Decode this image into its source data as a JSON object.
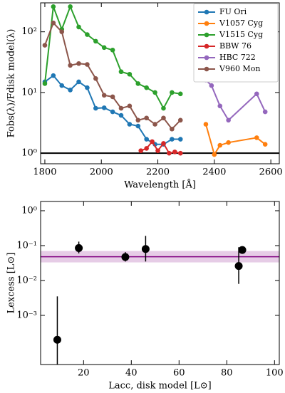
{
  "chart_data": [
    {
      "type": "line",
      "log_y": true,
      "xlabel": "Wavelength [Å]",
      "ylabel": "Fobs(λ)/Fdisk model(λ)",
      "xlim": [
        1785,
        2630
      ],
      "xticks": [
        1800,
        2000,
        2200,
        2400,
        2600
      ],
      "ylim": [
        0.67,
        300
      ],
      "yticks": [
        {
          "value": 1,
          "label": "10⁰"
        },
        {
          "value": 10,
          "label": "10¹"
        },
        {
          "value": 100,
          "label": "10²"
        }
      ],
      "hline": 1,
      "legend": "upper right",
      "series": [
        {
          "name": "FU Ori",
          "color": "#1f77b4",
          "x": [
            1800,
            1830,
            1860,
            1890,
            1920,
            1950,
            1980,
            2010,
            2040,
            2070,
            2100,
            2130,
            2160,
            2190,
            2220,
            2250,
            2280
          ],
          "values": [
            15,
            19,
            13,
            11,
            15,
            12,
            5.5,
            5.6,
            4.8,
            4.2,
            3,
            2.8,
            1.7,
            1.4,
            1.4,
            1.7,
            1.7
          ]
        },
        {
          "name": "V1057 Cyg",
          "color": "#ff7f0e",
          "x": [
            2370,
            2400,
            2420,
            2450,
            2550,
            2580
          ],
          "values": [
            3,
            0.95,
            1.35,
            1.5,
            1.8,
            1.4
          ]
        },
        {
          "name": "V1515 Cyg",
          "color": "#2ca02c",
          "x": [
            1800,
            1830,
            1860,
            1890,
            1920,
            1950,
            1980,
            2010,
            2040,
            2070,
            2100,
            2130,
            2160,
            2190,
            2220,
            2250,
            2280
          ],
          "values": [
            14,
            260,
            110,
            260,
            120,
            90,
            70,
            55,
            50,
            22,
            20,
            14,
            12,
            10,
            5.5,
            10,
            9.5
          ]
        },
        {
          "name": "BBW 76",
          "color": "#d62728",
          "x": [
            2140,
            2160,
            2180,
            2200,
            2220,
            2240,
            2260,
            2280
          ],
          "values": [
            1.1,
            1.2,
            1.55,
            1.1,
            1.45,
            1.0,
            1.05,
            1.0
          ]
        },
        {
          "name": "HBC 722",
          "color": "#9467bd",
          "x": [
            2370,
            2390,
            2420,
            2450,
            2550,
            2580
          ],
          "values": [
            16,
            13,
            6,
            3.5,
            9.5,
            4.8
          ]
        },
        {
          "name": "V960 Mon",
          "color": "#8c564b",
          "x": [
            1800,
            1830,
            1860,
            1890,
            1920,
            1950,
            1980,
            2010,
            2040,
            2070,
            2100,
            2130,
            2160,
            2190,
            2220,
            2250,
            2280
          ],
          "values": [
            60,
            140,
            100,
            28,
            30,
            29,
            17,
            9,
            8.5,
            5.5,
            6,
            3.5,
            3.8,
            3,
            3.8,
            2.5,
            3.5
          ]
        }
      ]
    },
    {
      "type": "scatter",
      "log_y": true,
      "xlabel": "Lacc, disk model [L⊙]",
      "ylabel": "Lexcess [L⊙]",
      "xlim": [
        2,
        102
      ],
      "xticks": [
        20,
        40,
        60,
        80,
        100
      ],
      "ylim": [
        3.9e-05,
        1.84
      ],
      "yticks": [
        {
          "value": 0.001,
          "label": "10⁻³"
        },
        {
          "value": 0.01,
          "label": "10⁻²"
        },
        {
          "value": 0.1,
          "label": "10⁻¹"
        },
        {
          "value": 1,
          "label": "10⁰"
        }
      ],
      "color": "#000000",
      "x": [
        9,
        18,
        37.5,
        46,
        85,
        86.5
      ],
      "values": [
        0.0002,
        0.085,
        0.047,
        0.08,
        0.026,
        0.075
      ],
      "err_low": [
        0.00019,
        0.025,
        0.012,
        0.045,
        0.018,
        0.015
      ],
      "err_high": [
        0.0033,
        0.045,
        0.018,
        0.11,
        0.064,
        0.015
      ],
      "hline": {
        "value": 0.048,
        "low": 0.033,
        "high": 0.07,
        "color": "#800080"
      }
    }
  ]
}
